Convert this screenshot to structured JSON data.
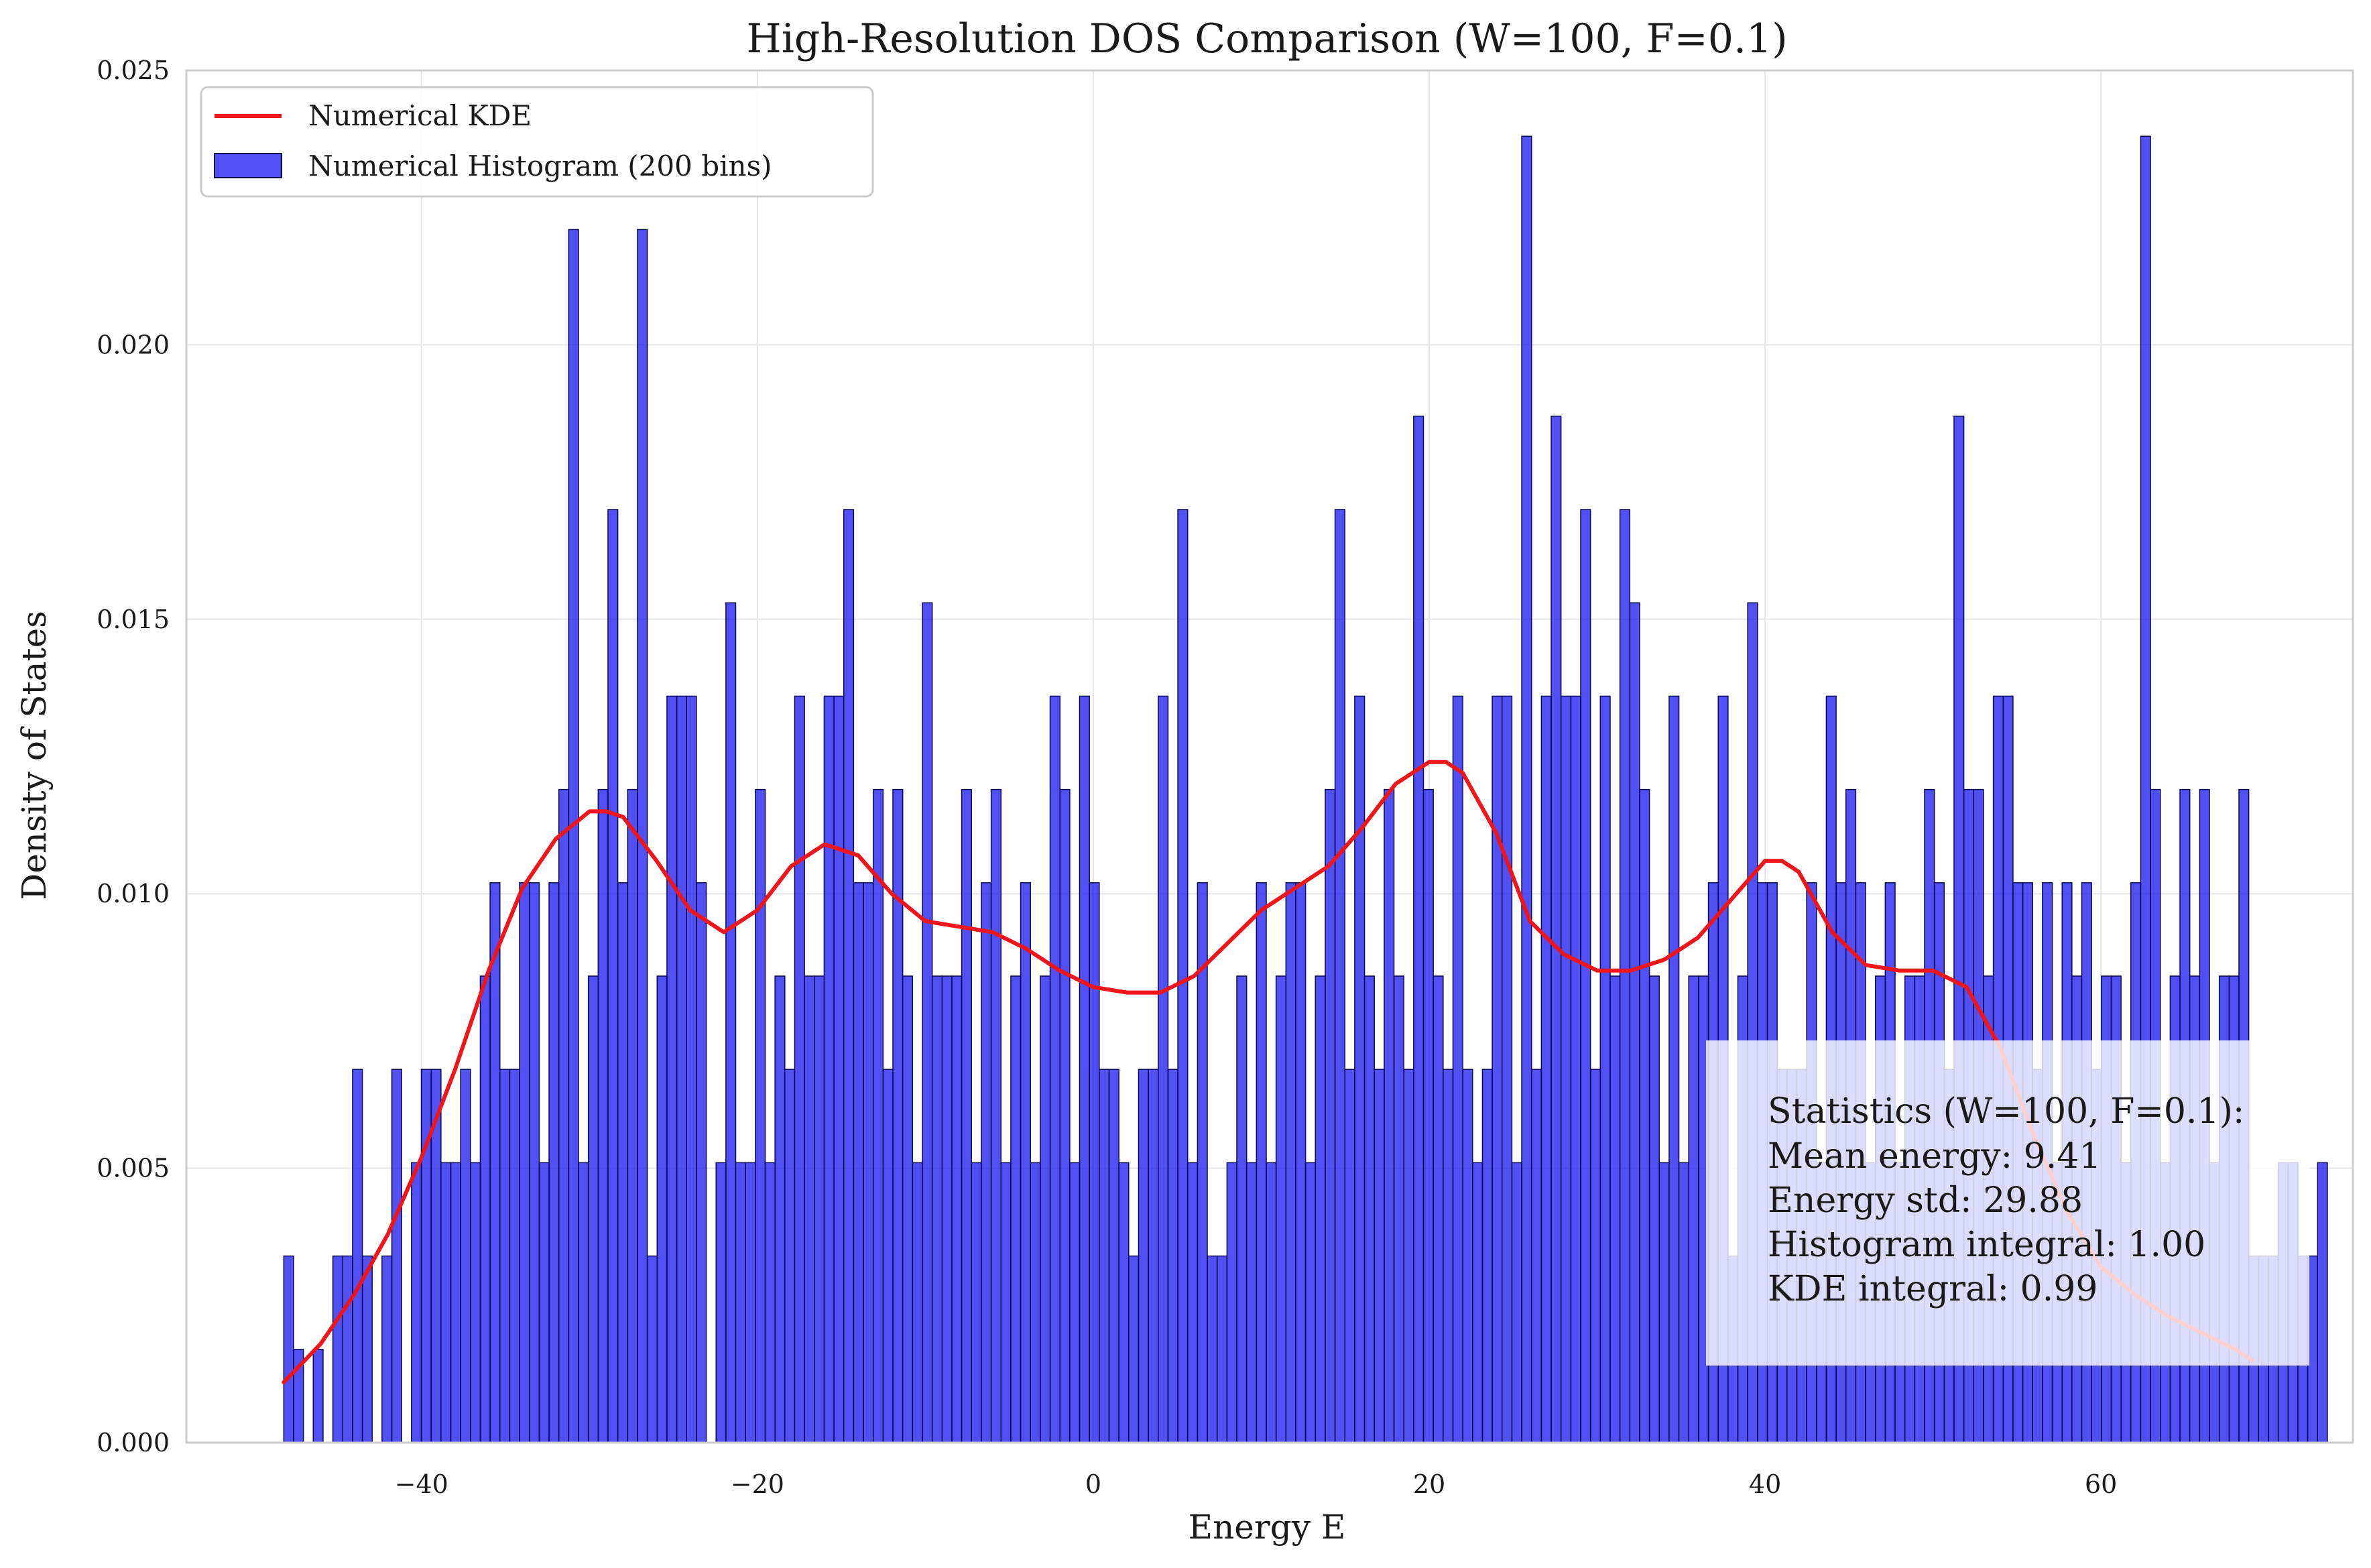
{
  "chart_data": {
    "type": "bar",
    "title": "High-Resolution DOS Comparison (W=100, F=0.1)",
    "xlabel": "Energy E",
    "ylabel": "Density of States",
    "xlim": [
      -54,
      75
    ],
    "ylim": [
      0,
      0.025
    ],
    "x_ticks": [
      -40,
      -20,
      0,
      20,
      40,
      60
    ],
    "x_tick_labels": [
      "−40",
      "−20",
      "0",
      "20",
      "40",
      "60"
    ],
    "y_ticks": [
      0,
      0.005,
      0.01,
      0.015,
      0.02,
      0.025
    ],
    "y_tick_labels": [
      "0.000",
      "0.005",
      "0.010",
      "0.015",
      "0.020",
      "0.025"
    ],
    "grid": true,
    "legend_position": "top-left",
    "colors": {
      "histogram": "#1515f0",
      "histogram_edge": "#0a0a50",
      "kde": "#f0151a",
      "grid": "#e6e6e6",
      "spine": "#cccccc"
    },
    "series": [
      {
        "name": "Numerical Histogram (200 bins)",
        "kind": "histogram",
        "bin_start": -48.2,
        "bin_width": 0.585,
        "values": [
          0.0034,
          0.0017,
          0,
          0.0017,
          0,
          0.0034,
          0.0034,
          0.0068,
          0.0034,
          0,
          0.0034,
          0.0068,
          0,
          0.0051,
          0.0068,
          0.0068,
          0.0051,
          0.0051,
          0.0068,
          0.0051,
          0.0085,
          0.0102,
          0.0068,
          0.0068,
          0.0102,
          0.0102,
          0.0051,
          0.0102,
          0.0119,
          0.0221,
          0.0051,
          0.0085,
          0.0119,
          0.017,
          0.0102,
          0.0119,
          0.0221,
          0.0034,
          0.0085,
          0.0136,
          0.0136,
          0.0136,
          0.0102,
          0,
          0.0051,
          0.0153,
          0.0051,
          0.0051,
          0.0119,
          0.0051,
          0.0085,
          0.0068,
          0.0136,
          0.0085,
          0.0085,
          0.0136,
          0.0136,
          0.017,
          0.0102,
          0.0102,
          0.0119,
          0.0068,
          0.0119,
          0.0085,
          0.0051,
          0.0153,
          0.0085,
          0.0085,
          0.0085,
          0.0119,
          0.0051,
          0.0102,
          0.0119,
          0.0051,
          0.0085,
          0.0102,
          0.0051,
          0.0085,
          0.0136,
          0.0119,
          0.0051,
          0.0136,
          0.0102,
          0.0068,
          0.0068,
          0.0051,
          0.0034,
          0.0068,
          0.0068,
          0.0136,
          0.0068,
          0.017,
          0.0051,
          0.0102,
          0.0034,
          0.0034,
          0.0051,
          0.0085,
          0.0051,
          0.0102,
          0.0051,
          0.0085,
          0.0102,
          0.0102,
          0.0051,
          0.0085,
          0.0119,
          0.017,
          0.0068,
          0.0136,
          0.0085,
          0.0068,
          0.0119,
          0.0085,
          0.0068,
          0.0187,
          0.0119,
          0.0085,
          0.0068,
          0.0136,
          0.0068,
          0.0051,
          0.0068,
          0.0136,
          0.0136,
          0.0051,
          0.0238,
          0.0068,
          0.0136,
          0.0187,
          0.0136,
          0.0136,
          0.017,
          0.0068,
          0.0136,
          0.0085,
          0.017,
          0.0153,
          0.0119,
          0.0085,
          0.0051,
          0.0136,
          0.0051,
          0.0085,
          0.0085,
          0.0102,
          0.0136,
          0.0034,
          0.0085,
          0.0153,
          0.0102,
          0.0102,
          0.0068,
          0.0068,
          0.0068,
          0.0102,
          0.0051,
          0.0136,
          0.0102,
          0.0119,
          0.0102,
          0.0051,
          0.0085,
          0.0102,
          0.0051,
          0.0085,
          0.0085,
          0.0119,
          0.0102,
          0.0068,
          0.0187,
          0.0119,
          0.0119,
          0.0085,
          0.0136,
          0.0136,
          0.0102,
          0.0102,
          0.0068,
          0.0102,
          0.0051,
          0.0102,
          0.0085,
          0.0102,
          0.0068,
          0.0085,
          0.0085,
          0.0051,
          0.0102,
          0.0238,
          0.0119,
          0.0051,
          0.0085,
          0.0119,
          0.0085,
          0.0119,
          0.0051,
          0.0085,
          0.0085,
          0.0119,
          0.0034,
          0.0034,
          0.0034,
          0.0051,
          0.0051,
          0.0034,
          0.0034,
          0.0051
        ]
      },
      {
        "name": "Numerical KDE",
        "kind": "line",
        "x": [
          -48.2,
          -46,
          -44,
          -42,
          -40,
          -38,
          -36,
          -34,
          -32,
          -30,
          -29,
          -28,
          -26,
          -24,
          -22,
          -20,
          -18,
          -16,
          -14,
          -12,
          -10,
          -8,
          -6,
          -4,
          -2,
          0,
          2,
          4,
          6,
          8,
          10,
          12,
          14,
          16,
          18,
          20,
          21,
          22,
          24,
          26,
          28,
          30,
          32,
          34,
          36,
          38,
          40,
          41,
          42,
          44,
          46,
          48,
          50,
          52,
          54,
          56,
          58,
          60,
          62,
          64,
          66,
          68,
          69
        ],
        "y": [
          0.0011,
          0.0018,
          0.0027,
          0.0038,
          0.0052,
          0.0068,
          0.0086,
          0.0101,
          0.011,
          0.0115,
          0.0115,
          0.0114,
          0.0106,
          0.0097,
          0.0093,
          0.0097,
          0.0105,
          0.0109,
          0.0107,
          0.01,
          0.0095,
          0.0094,
          0.0093,
          0.009,
          0.0086,
          0.0083,
          0.0082,
          0.0082,
          0.0085,
          0.0091,
          0.0097,
          0.0101,
          0.0105,
          0.0112,
          0.012,
          0.0124,
          0.0124,
          0.0122,
          0.0111,
          0.0095,
          0.0089,
          0.0086,
          0.0086,
          0.0088,
          0.0092,
          0.0099,
          0.0106,
          0.0106,
          0.0104,
          0.0093,
          0.0087,
          0.0086,
          0.0086,
          0.0083,
          0.0072,
          0.0056,
          0.0042,
          0.0032,
          0.0027,
          0.0023,
          0.002,
          0.0017,
          0.0015
        ]
      }
    ],
    "legend": [
      "Numerical KDE",
      "Numerical Histogram (200 bins)"
    ],
    "stats_box": {
      "lines": [
        "Statistics (W=100, F=0.1):",
        "Mean energy: 9.41",
        "Energy std: 29.88",
        "Histogram integral: 1.00",
        "KDE integral: 0.99"
      ]
    }
  }
}
